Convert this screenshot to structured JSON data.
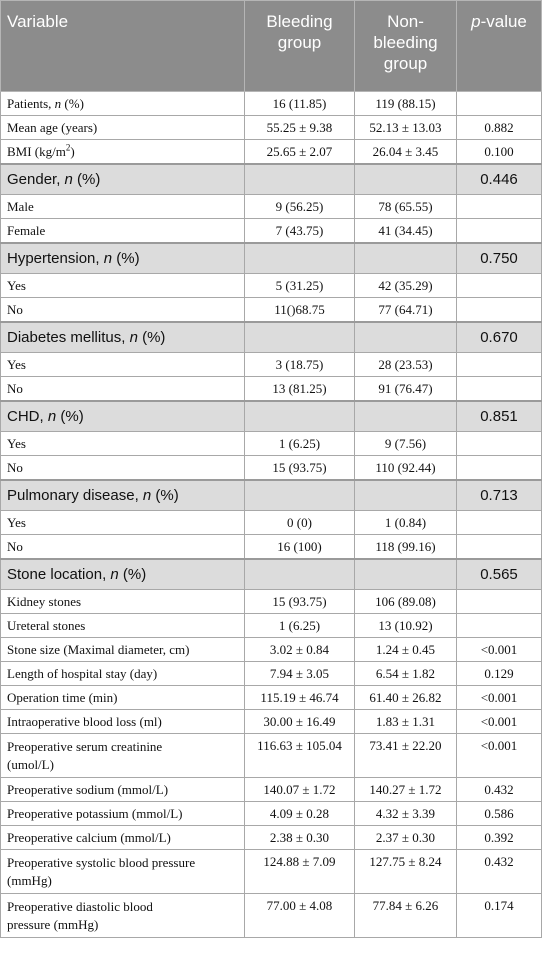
{
  "header": {
    "variable": "Variable",
    "bleeding": "Bleeding group",
    "non_bleeding": "Non-bleeding group",
    "p_prefix": "p",
    "p_suffix": "-value"
  },
  "rows": {
    "patients": {
      "label_a": "Patients, ",
      "label_n": "n",
      "label_b": " (%)",
      "bleeding": "16 (11.85)",
      "non_bleeding": "119 (88.15)",
      "p": ""
    },
    "age": {
      "label": "Mean age (years)",
      "bleeding": "55.25 ± 9.38",
      "non_bleeding": "52.13 ± 13.03",
      "p": "0.882"
    },
    "bmi": {
      "label": "BMI (kg/m",
      "label_sup": "2",
      "label_end": ")",
      "bleeding": "25.65 ± 2.07",
      "non_bleeding": "26.04 ± 3.45",
      "p": "0.100"
    },
    "gender": {
      "label_a": "Gender, ",
      "label_n": "n",
      "label_b": " (%)",
      "p": "0.446"
    },
    "male": {
      "label": "Male",
      "bleeding": "9 (56.25)",
      "non_bleeding": "78 (65.55)"
    },
    "female": {
      "label": "Female",
      "bleeding": "7 (43.75)",
      "non_bleeding": "41 (34.45)"
    },
    "hypertension": {
      "label_a": "Hypertension, ",
      "label_n": "n",
      "label_b": " (%)",
      "p": "0.750"
    },
    "ht_yes": {
      "label": "Yes",
      "bleeding": "5 (31.25)",
      "non_bleeding": "42 (35.29)"
    },
    "ht_no": {
      "label": "No",
      "bleeding": "11()68.75",
      "non_bleeding": "77 (64.71)"
    },
    "diabetes": {
      "label_a": "Diabetes mellitus, ",
      "label_n": "n",
      "label_b": " (%)",
      "p": "0.670"
    },
    "dm_yes": {
      "label": "Yes",
      "bleeding": "3 (18.75)",
      "non_bleeding": "28 (23.53)"
    },
    "dm_no": {
      "label": "No",
      "bleeding": "13 (81.25)",
      "non_bleeding": "91 (76.47)"
    },
    "chd": {
      "label_a": "CHD, ",
      "label_n": "n",
      "label_b": " (%)",
      "p": "0.851"
    },
    "chd_yes": {
      "label": "Yes",
      "bleeding": "1 (6.25)",
      "non_bleeding": "9 (7.56)"
    },
    "chd_no": {
      "label": "No",
      "bleeding": "15 (93.75)",
      "non_bleeding": "110 (92.44)"
    },
    "pulmonary": {
      "label_a": "Pulmonary disease, ",
      "label_n": "n",
      "label_b": " (%)",
      "p": "0.713"
    },
    "pd_yes": {
      "label": "Yes",
      "bleeding": "0 (0)",
      "non_bleeding": "1 (0.84)"
    },
    "pd_no": {
      "label": "No",
      "bleeding": "16 (100)",
      "non_bleeding": "118 (99.16)"
    },
    "stone_location": {
      "label_a": "Stone location, ",
      "label_n": "n",
      "label_b": " (%)",
      "p": "0.565"
    },
    "kidney": {
      "label": "Kidney stones",
      "bleeding": "15 (93.75)",
      "non_bleeding": "106 (89.08)"
    },
    "ureteral": {
      "label": "Ureteral stones",
      "bleeding": "1 (6.25)",
      "non_bleeding": "13 (10.92)"
    },
    "stone_size": {
      "label": "Stone size (Maximal diameter, cm)",
      "bleeding": "3.02 ± 0.84",
      "non_bleeding": "1.24 ± 0.45",
      "p": "<0.001"
    },
    "stay": {
      "label": "Length of hospital stay (day)",
      "bleeding": "7.94 ± 3.05",
      "non_bleeding": "6.54 ± 1.82",
      "p": "0.129"
    },
    "op_time": {
      "label": "Operation time (min)",
      "bleeding": "115.19 ± 46.74",
      "non_bleeding": "61.40 ± 26.82",
      "p": "<0.001"
    },
    "blood_loss": {
      "label": "Intraoperative blood loss (ml)",
      "bleeding": "30.00 ± 16.49",
      "non_bleeding": "1.83 ± 1.31",
      "p": "<0.001"
    },
    "creatinine": {
      "label_1": "Preoperative serum creatinine",
      "label_2": "(umol/L)",
      "bleeding": "116.63 ± 105.04",
      "non_bleeding": "73.41 ± 22.20",
      "p": "<0.001"
    },
    "sodium": {
      "label": "Preoperative sodium (mmol/L)",
      "bleeding": "140.07 ± 1.72",
      "non_bleeding": "140.27 ± 1.72",
      "p": "0.432"
    },
    "potassium": {
      "label": "Preoperative potassium (mmol/L)",
      "bleeding": "4.09 ± 0.28",
      "non_bleeding": "4.32 ± 3.39",
      "p": "0.586"
    },
    "calcium": {
      "label": "Preoperative calcium (mmol/L)",
      "bleeding": "2.38 ± 0.30",
      "non_bleeding": "2.37 ± 0.30",
      "p": "0.392"
    },
    "systolic": {
      "label_1": "Preoperative systolic blood pressure",
      "label_2": "(mmHg)",
      "bleeding": "124.88 ± 7.09",
      "non_bleeding": "127.75 ± 8.24",
      "p": "0.432"
    },
    "diastolic": {
      "label_1": "Preoperative diastolic blood",
      "label_2": "pressure (mmHg)",
      "bleeding": "77.00 ± 4.08",
      "non_bleeding": "77.84 ± 6.26",
      "p": "0.174"
    }
  }
}
